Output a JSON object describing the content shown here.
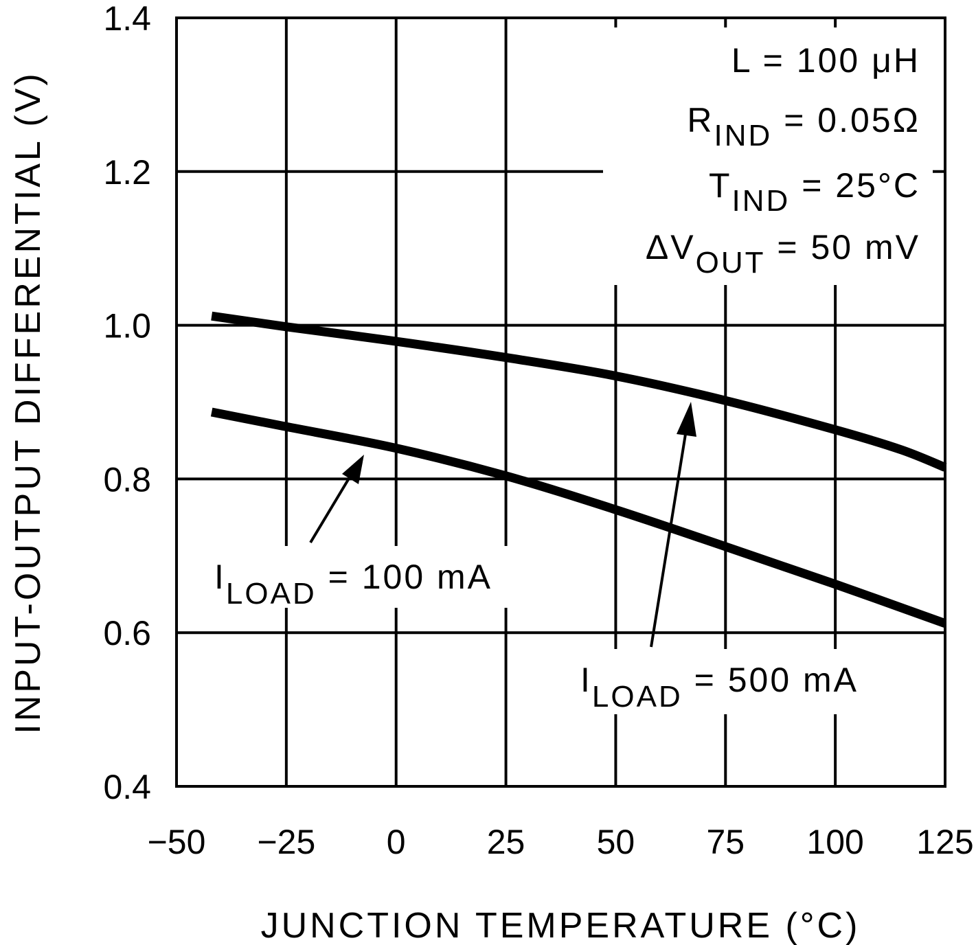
{
  "chart_data": {
    "type": "line",
    "title": "",
    "xlabel": "JUNCTION TEMPERATURE (°C)",
    "ylabel": "INPUT-OUTPUT DIFFERENTIAL (V)",
    "xlim": [
      -50,
      125
    ],
    "ylim": [
      0.4,
      1.4
    ],
    "grid": true,
    "xticks": [
      "−50",
      "−25",
      "0",
      "25",
      "50",
      "75",
      "100",
      "125"
    ],
    "xtick_values": [
      -50,
      -25,
      0,
      25,
      50,
      75,
      100,
      125
    ],
    "yticks": [
      "0.4",
      "0.6",
      "0.8",
      "1.0",
      "1.2",
      "1.4"
    ],
    "ytick_values": [
      0.4,
      0.6,
      0.8,
      1.0,
      1.2,
      1.4
    ],
    "series": [
      {
        "name": "I_LOAD = 500 mA",
        "x": [
          -42,
          -25,
          0,
          25,
          50,
          75,
          100,
          115,
          125
        ],
        "y": [
          1.012,
          0.998,
          0.979,
          0.958,
          0.934,
          0.902,
          0.864,
          0.838,
          0.815
        ]
      },
      {
        "name": "I_LOAD = 100 mA",
        "x": [
          -42,
          -25,
          0,
          25,
          50,
          75,
          100,
          125
        ],
        "y": [
          0.887,
          0.868,
          0.84,
          0.804,
          0.76,
          0.712,
          0.663,
          0.612
        ]
      }
    ],
    "conditions": [
      {
        "main": "L  =  100 μH",
        "sub": ""
      },
      {
        "main": "R",
        "sub": "IND",
        "rest": "  =  0.05Ω"
      },
      {
        "main": "T",
        "sub": "IND",
        "rest": "  =  25°C"
      },
      {
        "main": "ΔV",
        "sub": "OUT",
        "rest": "  =  50 mV"
      }
    ],
    "labels": {
      "load100": {
        "main": "I",
        "sub": "LOAD",
        "rest": "  =  100 mA"
      },
      "load500": {
        "main": "I",
        "sub": "LOAD",
        "rest": "  =  500 mA"
      }
    },
    "line_color": "#000000"
  }
}
